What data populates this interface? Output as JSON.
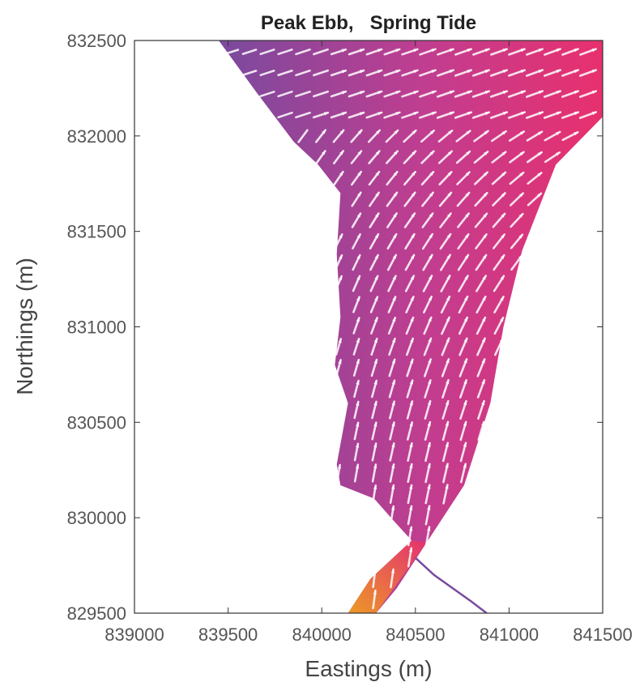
{
  "chart_data": {
    "type": "quiver",
    "title": "Peak Ebb,   Spring Tide",
    "xlabel": "Eastings (m)",
    "ylabel": "Northings (m)",
    "xlim": [
      839000,
      841500
    ],
    "ylim": [
      829500,
      832500
    ],
    "x_ticks": [
      "839000",
      "839500",
      "840000",
      "840500",
      "841000",
      "841500"
    ],
    "y_ticks": [
      "829500",
      "830000",
      "830500",
      "831000",
      "831500",
      "832000",
      "832500"
    ],
    "grid": false,
    "colors": {
      "low_speed": "#7a4a9e",
      "mid_speed": "#c23d8f",
      "high_speed": "#e8306e",
      "peak_speed": "#f4a21a",
      "vectors": "#ffffff"
    },
    "domain_boundary": [
      [
        839450,
        832500
      ],
      [
        841500,
        832500
      ],
      [
        841500,
        832100
      ],
      [
        841250,
        831850
      ],
      [
        841070,
        831400
      ],
      [
        840970,
        831000
      ],
      [
        840900,
        830600
      ],
      [
        840760,
        830170
      ],
      [
        840560,
        829870
      ],
      [
        840400,
        829630
      ],
      [
        840290,
        829500
      ],
      [
        840140,
        829500
      ],
      [
        840260,
        829680
      ],
      [
        840480,
        829880
      ],
      [
        840370,
        830000
      ],
      [
        840280,
        830100
      ],
      [
        840100,
        830170
      ],
      [
        840080,
        830280
      ],
      [
        840140,
        830600
      ],
      [
        840070,
        830800
      ],
      [
        840100,
        831050
      ],
      [
        840080,
        831380
      ],
      [
        840100,
        831700
      ],
      [
        839980,
        831850
      ],
      [
        839850,
        831970
      ],
      [
        839650,
        832230
      ]
    ],
    "side_channel": [
      [
        840500,
        829790
      ],
      [
        840600,
        829700
      ],
      [
        840800,
        829560
      ],
      [
        840880,
        829500
      ]
    ],
    "vector_field_description": "flow vectors pointing north-east along the channel; fastest near the channel throat at 840300-840500 E, 829500-829900 N"
  }
}
